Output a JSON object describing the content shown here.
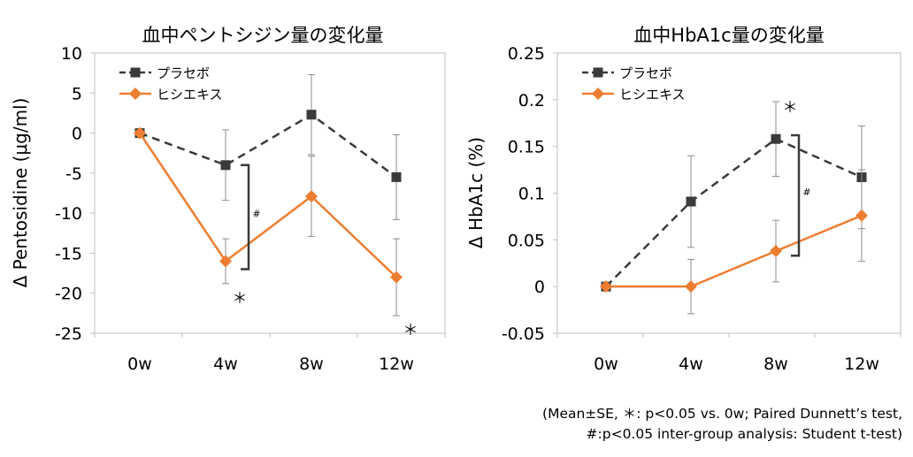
{
  "footnote": {
    "line1": "(Mean±SE, ＊: p<0.05 vs. 0w; Paired Dunnett’s test,",
    "line2": "#:p<0.05 inter-group analysis: Student t-test)"
  },
  "chart_data": [
    {
      "type": "line",
      "title": "血中ペントシジン量の変化量",
      "xlabel": "",
      "ylabel": "Δ Pentosidine (μg/ml)",
      "categories": [
        "0w",
        "4w",
        "8w",
        "12w"
      ],
      "ylim": [
        -25,
        10
      ],
      "yticks": [
        10,
        5,
        0,
        -5,
        -10,
        -15,
        -20,
        -25
      ],
      "ytick_labels": [
        "10",
        "5",
        "0",
        "-5",
        "-10",
        "-15",
        "-20",
        "-25"
      ],
      "grid": false,
      "legend_position": "top-left",
      "series": [
        {
          "name": "プラセボ",
          "color": "#3a3a3a",
          "marker": "square",
          "dash": true,
          "values": [
            0,
            -4,
            2.3,
            -5.5
          ],
          "errors": [
            0,
            4.4,
            5.0,
            5.3
          ]
        },
        {
          "name": "ヒシエキス",
          "color": "#ed7d31",
          "marker": "diamond",
          "dash": false,
          "values": [
            0,
            -16,
            -7.9,
            -18
          ],
          "errors": [
            0,
            2.8,
            5.0,
            4.8
          ]
        }
      ],
      "annotations": [
        {
          "type": "asterisk",
          "text": "＊",
          "series": 1,
          "category": 1
        },
        {
          "type": "asterisk",
          "text": "＊",
          "series": 1,
          "category": 3
        },
        {
          "type": "bracket",
          "text": "#",
          "category": 1,
          "from": -4,
          "to": -17
        }
      ]
    },
    {
      "type": "line",
      "title": "血中HbA1c量の変化量",
      "xlabel": "",
      "ylabel": "Δ HbA1c (%)",
      "categories": [
        "0w",
        "4w",
        "8w",
        "12w"
      ],
      "ylim": [
        -0.05,
        0.25
      ],
      "yticks": [
        0.25,
        0.2,
        0.15,
        0.1,
        0.05,
        0,
        -0.05
      ],
      "ytick_labels": [
        "0.25",
        "0.2",
        "0.15",
        "0.1",
        "0.05",
        "0",
        "-0.05"
      ],
      "grid": false,
      "legend_position": "top-left",
      "series": [
        {
          "name": "プラセボ",
          "color": "#3a3a3a",
          "marker": "square",
          "dash": true,
          "values": [
            0,
            0.091,
            0.158,
            0.117
          ],
          "errors": [
            0,
            0.049,
            0.04,
            0.055
          ]
        },
        {
          "name": "ヒシエキス",
          "color": "#ed7d31",
          "marker": "diamond",
          "dash": false,
          "values": [
            0,
            0,
            0.038,
            0.076
          ],
          "errors": [
            0,
            0.029,
            0.033,
            0.049
          ]
        }
      ],
      "annotations": [
        {
          "type": "asterisk",
          "text": "＊",
          "series": 0,
          "category": 2
        },
        {
          "type": "bracket",
          "text": "#",
          "category": 2,
          "from": 0.162,
          "to": 0.033
        }
      ]
    }
  ]
}
